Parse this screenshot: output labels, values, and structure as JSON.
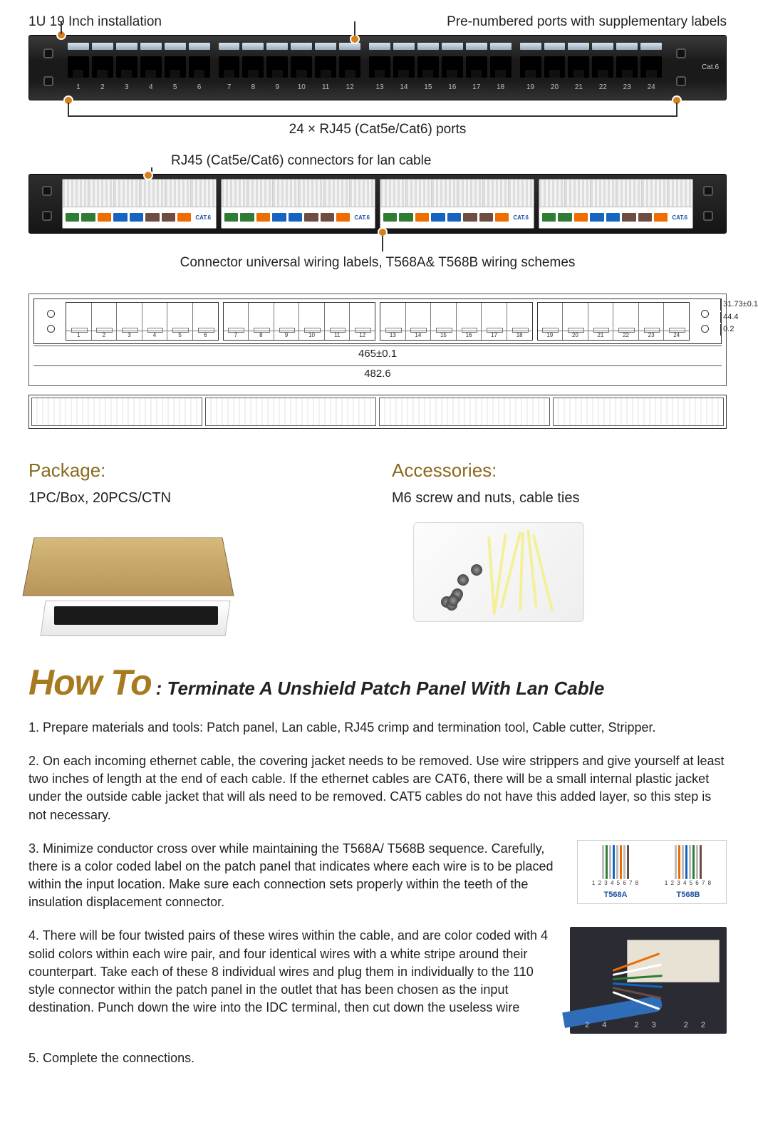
{
  "annotations": {
    "top_left": "1U 19 Inch installation",
    "top_right": "Pre-numbered ports with supplementary labels",
    "mid": "24 × RJ45 (Cat5e/Cat6) ports",
    "back_top": "RJ45 (Cat5e/Cat6) connectors for lan cable",
    "back_bottom": "Connector universal wiring labels, T568A& T568B wiring schemes",
    "cat6": "Cat.6"
  },
  "port_groups": [
    [
      1,
      2,
      3,
      4,
      5,
      6
    ],
    [
      7,
      8,
      9,
      10,
      11,
      12
    ],
    [
      13,
      14,
      15,
      16,
      17,
      18
    ],
    [
      19,
      20,
      21,
      22,
      23,
      24
    ]
  ],
  "idc_chip_colors": [
    "#2e7d32",
    "#2e7d32",
    "#ef6c00",
    "#1565c0",
    "#1565c0",
    "#6d4c41",
    "#6d4c41",
    "#ef6c00"
  ],
  "idc_cat_label": "CAT.6",
  "dimensions": {
    "inner_w": "465±0.1",
    "outer_w": "482.6",
    "h1": "31.73±0.1",
    "h2": "44.4",
    "h3": "0.2"
  },
  "package": {
    "title": "Package:",
    "body": "1PC/Box, 20PCS/CTN"
  },
  "accessories": {
    "title": "Accessories:",
    "body": "M6 screw and nuts, cable ties",
    "tie_color": "#f4f09a",
    "screw_count": 7
  },
  "howto": {
    "big": "How To",
    "rest": ": Terminate A Unshield Patch Panel With Lan Cable",
    "steps": [
      "Prepare materials and tools: Patch panel, Lan cable, RJ45 crimp and termination tool, Cable cutter, Stripper.",
      "On each incoming ethernet cable, the covering jacket needs to be removed. Use wire strippers and give yourself at least two inches of length at the end of each cable.  If the ethernet cables are CAT6, there will be a small internal plastic jacket under the outside cable jacket that will als need to be removed. CAT5 cables do not have this added layer, so this step is not necessary.",
      "Minimize conductor cross over while maintaining the T568A/ T568B sequence. Carefully, there is a color coded label on the patch panel that indicates where each wire is to be placed within the input location.  Make sure each connection sets properly within the teeth of the insulation displacement connector.",
      "There will be four twisted pairs of these wires within the cable, and are color coded with 4 solid colors within each wire pair, and four identical wires with a white stripe around their counterpart.  Take each of these 8 individual wires and plug them in individually to the 110 style connector within the patch panel in the outlet that has been chosen as the input destination.\nPunch down the wire into the IDC terminal, then cut down the useless wire",
      "Complete the connections."
    ]
  },
  "wiring": {
    "a_label": "T568A",
    "b_label": "T568B",
    "nums": "1 2 3 4 5 6 7 8",
    "t568a": [
      "#bdbdbd",
      "#2e7d32",
      "#bdbdbd",
      "#1565c0",
      "#bdbdbd",
      "#ef6c00",
      "#bdbdbd",
      "#6d4c41"
    ],
    "t568b": [
      "#bdbdbd",
      "#ef6c00",
      "#bdbdbd",
      "#1565c0",
      "#bdbdbd",
      "#2e7d32",
      "#bdbdbd",
      "#6d4c41"
    ]
  },
  "idc_photo": {
    "fan_colors": [
      "#ef6c00",
      "#ffffff",
      "#2e7d32",
      "#1565c0",
      "#6d4c41",
      "#ffffff"
    ],
    "nums": "24 23 22"
  },
  "colors": {
    "accent": "#8a6a1f",
    "marker": "#d77f1c"
  }
}
